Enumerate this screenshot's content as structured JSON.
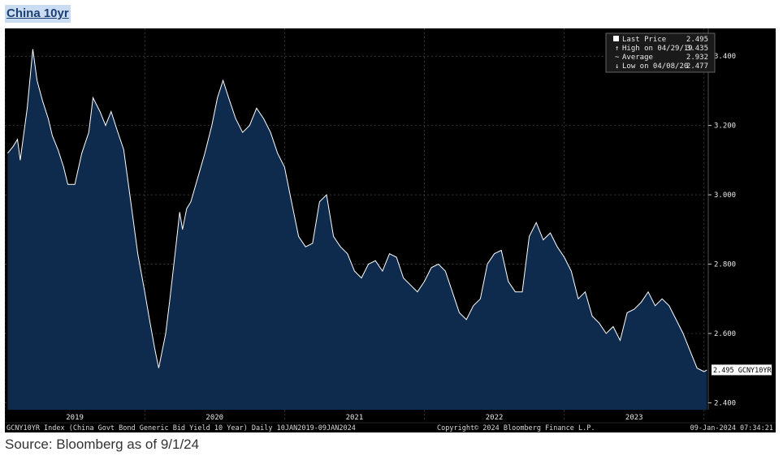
{
  "title": "China 10yr",
  "source": "Source: Bloomberg as of 9/1/24",
  "chart_data": {
    "type": "area",
    "title": "China 10yr",
    "ylim": [
      2.38,
      3.48
    ],
    "y_ticks": [
      "3.400",
      "3.200",
      "3.000",
      "2.800",
      "2.600",
      "2.400"
    ],
    "x_tick_labels": [
      "2019",
      "2020",
      "2021",
      "2022",
      "2023"
    ],
    "grid": true,
    "legend_position": "top-right",
    "legend": [
      {
        "label": "Last Price",
        "value": "2.495"
      },
      {
        "label": "High on 04/29/19",
        "value": "3.435"
      },
      {
        "label": "Average",
        "value": "2.932"
      },
      {
        "label": "Low on 04/08/20",
        "value": "2.477"
      }
    ],
    "last_value_label": "2.495 GCNY10YR",
    "footer_left": "GCNY10YR Index (China Govt Bond Generic Bid Yield 10 Year)  Daily 10JAN2019-09JAN2024",
    "footer_center": "Copyright© 2024 Bloomberg Finance L.P.",
    "footer_right": "09-Jan-2024 07:34:21",
    "colors": {
      "background": "#000000",
      "fill": "#0e2a4d",
      "line": "#ffffff",
      "grid": "#5a5a5a"
    },
    "x": [
      2019.02,
      2019.06,
      2019.09,
      2019.11,
      2019.16,
      2019.2,
      2019.23,
      2019.27,
      2019.31,
      2019.34,
      2019.38,
      2019.42,
      2019.45,
      2019.5,
      2019.55,
      2019.6,
      2019.63,
      2019.68,
      2019.72,
      2019.76,
      2019.8,
      2019.85,
      2019.9,
      2019.95,
      2020.0,
      2020.03,
      2020.07,
      2020.1,
      2020.15,
      2020.18,
      2020.22,
      2020.25,
      2020.27,
      2020.3,
      2020.33,
      2020.38,
      2020.43,
      2020.48,
      2020.52,
      2020.56,
      2020.6,
      2020.65,
      2020.7,
      2020.75,
      2020.8,
      2020.85,
      2020.9,
      2020.95,
      2021.0,
      2021.05,
      2021.1,
      2021.15,
      2021.2,
      2021.25,
      2021.3,
      2021.35,
      2021.4,
      2021.45,
      2021.5,
      2021.55,
      2021.6,
      2021.65,
      2021.7,
      2021.75,
      2021.8,
      2021.85,
      2021.9,
      2021.95,
      2022.0,
      2022.05,
      2022.1,
      2022.15,
      2022.2,
      2022.25,
      2022.3,
      2022.35,
      2022.4,
      2022.45,
      2022.5,
      2022.55,
      2022.6,
      2022.65,
      2022.7,
      2022.75,
      2022.8,
      2022.85,
      2022.9,
      2022.95,
      2023.0,
      2023.05,
      2023.1,
      2023.15,
      2023.2,
      2023.25,
      2023.3,
      2023.35,
      2023.4,
      2023.45,
      2023.5,
      2023.55,
      2023.6,
      2023.65,
      2023.7,
      2023.75,
      2023.8,
      2023.85,
      2023.9,
      2023.95,
      2024.0,
      2024.02
    ],
    "values": [
      3.12,
      3.14,
      3.16,
      3.1,
      3.25,
      3.42,
      3.33,
      3.27,
      3.22,
      3.17,
      3.13,
      3.08,
      3.03,
      3.03,
      3.12,
      3.18,
      3.28,
      3.24,
      3.2,
      3.24,
      3.19,
      3.13,
      2.98,
      2.83,
      2.72,
      2.65,
      2.56,
      2.5,
      2.6,
      2.7,
      2.84,
      2.95,
      2.9,
      2.96,
      2.98,
      3.05,
      3.12,
      3.2,
      3.28,
      3.33,
      3.28,
      3.22,
      3.18,
      3.2,
      3.25,
      3.22,
      3.18,
      3.12,
      3.08,
      2.98,
      2.88,
      2.85,
      2.86,
      2.98,
      3.0,
      2.88,
      2.85,
      2.83,
      2.78,
      2.76,
      2.8,
      2.81,
      2.78,
      2.83,
      2.82,
      2.76,
      2.74,
      2.72,
      2.75,
      2.79,
      2.8,
      2.78,
      2.72,
      2.66,
      2.64,
      2.68,
      2.7,
      2.8,
      2.83,
      2.84,
      2.75,
      2.72,
      2.72,
      2.88,
      2.92,
      2.87,
      2.89,
      2.85,
      2.82,
      2.78,
      2.7,
      2.72,
      2.65,
      2.63,
      2.6,
      2.62,
      2.58,
      2.66,
      2.67,
      2.69,
      2.72,
      2.68,
      2.7,
      2.68,
      2.64,
      2.6,
      2.55,
      2.5,
      2.49,
      2.495
    ]
  }
}
